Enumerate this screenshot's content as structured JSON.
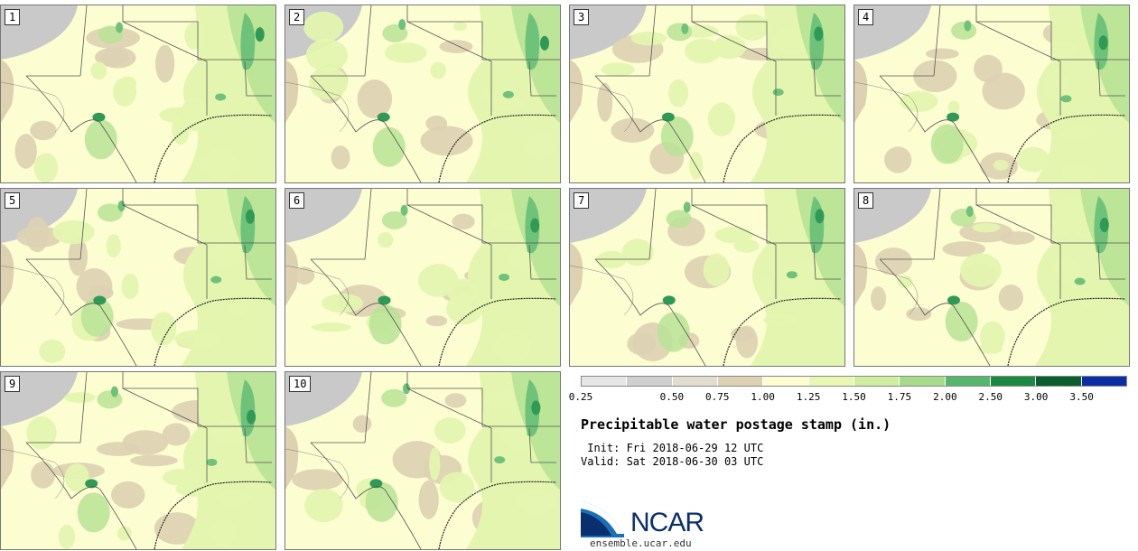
{
  "title": "Precipitable water postage stamp (in.)",
  "init_label": " Init: Fri 2018-06-29 12 UTC",
  "valid_label": "Valid: Sat 2018-06-30 03 UTC",
  "logo_text": "NCAR",
  "logo_url": "ensemble.ucar.edu",
  "legend": {
    "ticks": [
      "0.25",
      "0.50",
      "0.75",
      "1.00",
      "1.25",
      "1.50",
      "1.75",
      "2.00",
      "2.50",
      "3.00",
      "3.50"
    ],
    "colors": [
      "#e6e6e6",
      "#cfcfcf",
      "#e2ddd0",
      "#ddd1b2",
      "#fdfdd2",
      "#eaf7b4",
      "#cfeea0",
      "#a8da8b",
      "#56b670",
      "#1b8a45",
      "#0a5e2d",
      "#0d2da5"
    ]
  },
  "members": [
    "1",
    "2",
    "3",
    "4",
    "5",
    "6",
    "7",
    "8",
    "9",
    "10"
  ],
  "colors": {
    "gray": "#c9c9c9",
    "tan": "#ddd1b2",
    "cream": "#fdfdd2",
    "light_green": "#e4f5b0",
    "mid_green": "#b8e396",
    "green": "#6fc27a",
    "dark_green": "#2f9a55",
    "border": "#555555"
  }
}
